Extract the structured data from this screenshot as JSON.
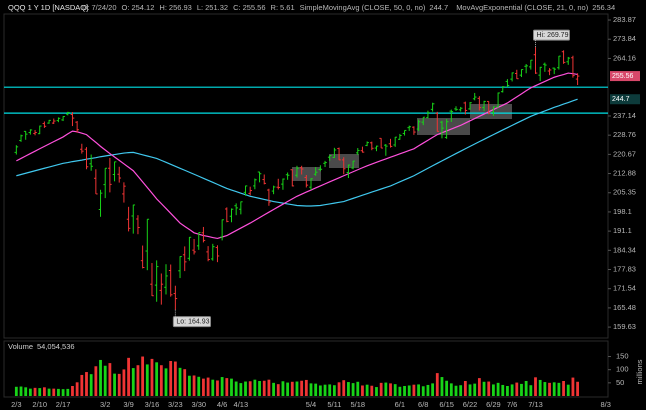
{
  "chart_data": {
    "type": "ohlc",
    "title": "QQQ 1 Y 1D [NASDAQ]",
    "header": [
      {
        "label": "D:",
        "value": "7/24/20"
      },
      {
        "label": "O:",
        "value": 254.12
      },
      {
        "label": "H:",
        "value": 256.93
      },
      {
        "label": "L:",
        "value": 251.32
      },
      {
        "label": "C:",
        "value": 255.56
      },
      {
        "label": "R:",
        "value": 5.61
      }
    ],
    "log_scale": true,
    "grid": false,
    "up_color": "#18d418",
    "down_color": "#f03434",
    "hlines": [
      250.3,
      238.4
    ],
    "hline_color": "#00e0e6",
    "ylim": [
      156.4,
      287.1
    ],
    "yticks": [
      283.87,
      273.84,
      264.16,
      237.14,
      228.76,
      220.67,
      212.88,
      205.35,
      198.1,
      191.1,
      184.34,
      177.83,
      171.54,
      165.48,
      159.63
    ],
    "annotations": {
      "high_label": "Hi:",
      "low_label": "Lo:"
    },
    "categories": [
      "2/3",
      null,
      null,
      null,
      null,
      "2/10",
      null,
      null,
      null,
      null,
      "2/17",
      null,
      null,
      null,
      null,
      null,
      null,
      null,
      null,
      "3/2",
      null,
      null,
      null,
      null,
      "3/9",
      null,
      null,
      null,
      null,
      "3/16",
      null,
      null,
      null,
      null,
      "3/23",
      null,
      null,
      null,
      null,
      "3/30",
      null,
      null,
      null,
      null,
      "4/6",
      null,
      null,
      null,
      "4/13",
      null,
      null,
      null,
      null,
      null,
      null,
      null,
      null,
      null,
      null,
      null,
      null,
      null,
      null,
      "5/4",
      null,
      null,
      null,
      null,
      "5/11",
      null,
      null,
      null,
      null,
      "5/18",
      null,
      null,
      null,
      null,
      null,
      null,
      null,
      null,
      "6/1",
      null,
      null,
      null,
      null,
      "6/8",
      null,
      null,
      null,
      null,
      "6/15",
      null,
      null,
      null,
      null,
      "6/22",
      null,
      null,
      null,
      null,
      "6/29",
      null,
      null,
      null,
      "7/6",
      null,
      null,
      null,
      null,
      "7/13",
      null,
      null,
      null,
      null,
      null,
      null,
      null,
      null,
      null,
      null,
      null,
      null,
      null,
      null,
      "8/3"
    ],
    "bars": [
      [
        221.5,
        224.5,
        220.6,
        223.8
      ],
      [
        226.5,
        229.0,
        225.9,
        228.5
      ],
      [
        230.4,
        230.5,
        226.8,
        229.2
      ],
      [
        229.9,
        231.3,
        229.0,
        231.0
      ],
      [
        229.5,
        231.0,
        228.7,
        229.9
      ],
      [
        229.4,
        232.9,
        229.2,
        232.7
      ],
      [
        233.8,
        234.7,
        231.9,
        232.6
      ],
      [
        234.0,
        235.4,
        233.7,
        235.2
      ],
      [
        234.0,
        236.0,
        233.6,
        234.9
      ],
      [
        235.1,
        236.5,
        234.4,
        236.1
      ],
      [
        235.4,
        237.0,
        234.9,
        236.9
      ],
      [
        238.0,
        239.0,
        237.4,
        238.7
      ],
      [
        237.8,
        238.9,
        232.7,
        236.2
      ],
      [
        234.4,
        234.9,
        229.8,
        231.1
      ],
      [
        222.8,
        225.1,
        221.0,
        222.0
      ],
      [
        222.8,
        223.7,
        214.6,
        215.6
      ],
      [
        216.8,
        220.6,
        214.0,
        215.8
      ],
      [
        211.0,
        214.6,
        204.9,
        204.9
      ],
      [
        199.0,
        206.5,
        196.3,
        205.2
      ],
      [
        208.5,
        215.0,
        203.3,
        215.0
      ],
      [
        215.0,
        219.2,
        205.5,
        208.6
      ],
      [
        212.5,
        217.7,
        209.8,
        217.6
      ],
      [
        212.6,
        215.6,
        209.3,
        211.1
      ],
      [
        204.9,
        209.4,
        201.6,
        207.9
      ],
      [
        195.4,
        200.0,
        191.0,
        192.1
      ],
      [
        196.6,
        200.8,
        190.2,
        200.7
      ],
      [
        195.5,
        196.9,
        190.0,
        192.4
      ],
      [
        180.8,
        186.0,
        178.2,
        178.5
      ],
      [
        184.1,
        195.4,
        177.6,
        195.4
      ],
      [
        173.0,
        180.0,
        169.2,
        169.3
      ],
      [
        172.7,
        180.9,
        167.4,
        178.8
      ],
      [
        171.0,
        176.5,
        166.5,
        173.0
      ],
      [
        172.0,
        179.6,
        169.7,
        175.7
      ],
      [
        177.5,
        179.5,
        169.0,
        169.6
      ],
      [
        170.0,
        172.5,
        164.93,
        168.4
      ],
      [
        177.4,
        182.3,
        175.0,
        182.2
      ],
      [
        182.8,
        185.7,
        177.3,
        180.4
      ],
      [
        181.6,
        189.0,
        180.8,
        188.9
      ],
      [
        184.4,
        188.3,
        182.9,
        183.8
      ],
      [
        185.9,
        190.6,
        184.5,
        190.6
      ],
      [
        190.5,
        192.6,
        187.1,
        187.8
      ],
      [
        183.8,
        185.8,
        180.6,
        181.2
      ],
      [
        181.4,
        186.6,
        180.8,
        185.6
      ],
      [
        185.3,
        186.1,
        180.3,
        182.4
      ],
      [
        189.0,
        195.3,
        187.8,
        195.2
      ],
      [
        199.2,
        199.8,
        194.3,
        194.6
      ],
      [
        196.5,
        199.4,
        194.3,
        199.1
      ],
      [
        200.4,
        201.3,
        196.9,
        199.6
      ],
      [
        199.1,
        202.0,
        197.2,
        201.9
      ],
      [
        205.5,
        208.1,
        204.2,
        208.0
      ],
      [
        205.1,
        207.7,
        204.4,
        206.2
      ],
      [
        208.0,
        210.9,
        206.7,
        210.4
      ],
      [
        213.5,
        213.6,
        209.4,
        212.8
      ],
      [
        210.5,
        212.5,
        208.6,
        209.0
      ],
      [
        206.4,
        206.9,
        200.4,
        201.8
      ],
      [
        206.0,
        208.1,
        204.8,
        207.6
      ],
      [
        207.5,
        210.8,
        206.6,
        207.4
      ],
      [
        208.7,
        210.9,
        206.5,
        210.7
      ],
      [
        212.4,
        213.3,
        210.4,
        212.2
      ],
      [
        214.4,
        214.6,
        207.8,
        208.0
      ],
      [
        212.2,
        216.0,
        211.3,
        215.0
      ],
      [
        215.2,
        216.0,
        212.5,
        214.7
      ],
      [
        211.3,
        212.3,
        207.4,
        208.3
      ],
      [
        207.5,
        211.0,
        206.4,
        210.8
      ],
      [
        212.6,
        215.5,
        212.0,
        213.4
      ],
      [
        214.5,
        216.2,
        213.8,
        214.6
      ],
      [
        217.0,
        218.0,
        215.5,
        217.3
      ],
      [
        219.5,
        220.3,
        218.0,
        220.2
      ],
      [
        219.4,
        223.4,
        219.2,
        222.5
      ],
      [
        223.1,
        223.5,
        218.3,
        218.4
      ],
      [
        218.4,
        219.5,
        212.6,
        214.8
      ],
      [
        213.3,
        216.5,
        211.1,
        216.3
      ],
      [
        215.1,
        218.0,
        214.6,
        217.9
      ],
      [
        221.3,
        223.3,
        220.4,
        222.3
      ],
      [
        222.2,
        223.9,
        221.4,
        221.6
      ],
      [
        224.4,
        226.1,
        224.1,
        225.6
      ],
      [
        225.5,
        226.0,
        222.4,
        223.2
      ],
      [
        223.3,
        224.3,
        222.0,
        224.1
      ],
      [
        227.4,
        227.5,
        223.3,
        223.3
      ],
      [
        224.5,
        225.0,
        220.1,
        224.1
      ],
      [
        225.1,
        227.2,
        223.5,
        224.0
      ],
      [
        224.6,
        228.0,
        223.8,
        227.9
      ],
      [
        227.0,
        229.3,
        226.8,
        228.6
      ],
      [
        229.5,
        230.8,
        228.6,
        230.8
      ],
      [
        232.0,
        232.9,
        230.6,
        232.4
      ],
      [
        232.2,
        232.6,
        228.9,
        230.1
      ],
      [
        231.4,
        235.6,
        230.5,
        234.6
      ],
      [
        234.4,
        236.6,
        233.1,
        236.6
      ],
      [
        236.4,
        239.5,
        236.1,
        238.6
      ],
      [
        240.1,
        243.1,
        239.1,
        242.6
      ],
      [
        238.3,
        239.0,
        230.3,
        230.4
      ],
      [
        234.4,
        235.0,
        227.4,
        231.8
      ],
      [
        227.8,
        235.8,
        227.2,
        234.6
      ],
      [
        239.3,
        240.0,
        234.5,
        239.1
      ],
      [
        240.3,
        241.5,
        239.4,
        240.1
      ],
      [
        239.9,
        241.2,
        239.1,
        240.6
      ],
      [
        243.0,
        243.6,
        237.8,
        239.6
      ],
      [
        240.3,
        243.4,
        239.9,
        243.1
      ],
      [
        244.9,
        247.6,
        244.2,
        245.7
      ],
      [
        245.1,
        246.1,
        239.6,
        240.9
      ],
      [
        240.9,
        244.0,
        239.3,
        243.7
      ],
      [
        243.7,
        243.7,
        237.9,
        238.3
      ],
      [
        238.8,
        241.4,
        237.2,
        241.2
      ],
      [
        241.2,
        247.8,
        240.9,
        247.6
      ],
      [
        248.2,
        250.8,
        247.8,
        250.5
      ],
      [
        253.0,
        254.1,
        250.3,
        251.1
      ],
      [
        254.1,
        257.3,
        253.0,
        257.1
      ],
      [
        256.8,
        258.6,
        254.2,
        254.3
      ],
      [
        256.0,
        258.8,
        255.1,
        258.7
      ],
      [
        260.3,
        261.4,
        256.9,
        260.5
      ],
      [
        260.0,
        263.4,
        258.7,
        263.3
      ],
      [
        266.0,
        269.79,
        256.6,
        257.0
      ],
      [
        256.0,
        260.0,
        253.2,
        259.8
      ],
      [
        261.3,
        262.1,
        257.6,
        260.9
      ],
      [
        258.0,
        259.4,
        256.0,
        258.5
      ],
      [
        259.4,
        259.7,
        256.5,
        258.9
      ],
      [
        259.6,
        265.4,
        258.7,
        265.3
      ],
      [
        267.5,
        268.2,
        261.5,
        262.2
      ],
      [
        262.5,
        264.9,
        261.0,
        264.3
      ],
      [
        264.5,
        265.5,
        254.8,
        255.8
      ],
      [
        254.12,
        256.93,
        251.32,
        255.56
      ],
      null,
      null,
      null,
      null,
      null,
      null
    ],
    "series": [
      {
        "name": "SimpleMovingAvg (CLOSE, 50, 0, no)",
        "color": "#40c8ee",
        "values": [
          212,
          212.5,
          213,
          213.5,
          214,
          214.5,
          215,
          215.5,
          216,
          216.5,
          217,
          217.3,
          217.7,
          218,
          218.3,
          218.7,
          219,
          219.3,
          219.7,
          220,
          220.3,
          220.6,
          220.9,
          221.2,
          221.4,
          221.5,
          221,
          220.5,
          220,
          219.5,
          219,
          218.2,
          217.4,
          216.6,
          215.8,
          215,
          214.2,
          213.4,
          212.6,
          211.8,
          211,
          210.2,
          209.4,
          208.6,
          207.8,
          207,
          206.4,
          205.8,
          205.2,
          204.6,
          204,
          203.6,
          203.2,
          202.8,
          202.4,
          202,
          201.7,
          201.4,
          201.1,
          200.8,
          200.5,
          200.4,
          200.3,
          200.3,
          200.4,
          200.5,
          200.8,
          201.1,
          201.4,
          201.7,
          202,
          202.6,
          203.2,
          203.8,
          204.4,
          205,
          205.6,
          206.2,
          206.8,
          207.4,
          208,
          208.8,
          209.6,
          210.4,
          211.2,
          212,
          213,
          214,
          215,
          216,
          217,
          218,
          219,
          220,
          221,
          222,
          223,
          224,
          225,
          226,
          227,
          228,
          229,
          230,
          231,
          232,
          233,
          234,
          235,
          236,
          237,
          237.8,
          238.6,
          239.4,
          240.2,
          241,
          241.7,
          242.5,
          243.2,
          244,
          244.7,
          null,
          null,
          null,
          null,
          null,
          null
        ]
      },
      {
        "name": "MovAvgExponential (CLOSE, 21, 0, no)",
        "color": "#ff50dc",
        "values": [
          218,
          219,
          220,
          221,
          222,
          223,
          224,
          225,
          226,
          227,
          228,
          229.3,
          230.5,
          230.2,
          229.6,
          229,
          227.3,
          225.7,
          224,
          222.5,
          221,
          219.6,
          218.2,
          216.8,
          215.4,
          214,
          211.8,
          209.6,
          207.4,
          205.2,
          203,
          201.2,
          199.4,
          197.6,
          195.8,
          194,
          192.8,
          191.7,
          190.5,
          190,
          189.5,
          189.2,
          188.8,
          188.5,
          189,
          189.5,
          190.4,
          191.3,
          192.2,
          193.1,
          194,
          195,
          196,
          197,
          198,
          199,
          200,
          201,
          202,
          203,
          204,
          204.8,
          205.6,
          206.4,
          207.2,
          208,
          208.8,
          209.6,
          210.4,
          211.2,
          212,
          212.8,
          213.6,
          214.4,
          215.2,
          216,
          216.7,
          217.4,
          218.1,
          218.8,
          219.5,
          220.2,
          220.9,
          221.6,
          222.3,
          223,
          224.2,
          225.4,
          226.6,
          227.8,
          229,
          229.8,
          230.6,
          231.4,
          232.2,
          233,
          234,
          235,
          236,
          237,
          238,
          239,
          240,
          241,
          242,
          243,
          244.4,
          245.8,
          247.2,
          248.6,
          250,
          251,
          252,
          253,
          254,
          255,
          255.7,
          256.3,
          257,
          256.7,
          256.34,
          null,
          null,
          null,
          null,
          null,
          null
        ]
      }
    ],
    "volume": {
      "title": "Volume",
      "current": "54,054,536",
      "unit_label": "millions",
      "ylim": [
        0,
        190
      ],
      "yticks": [
        50,
        100,
        150
      ],
      "values": [
        35,
        36,
        33,
        28,
        31,
        30,
        33,
        28,
        28,
        27,
        26,
        27,
        38,
        52,
        80,
        91,
        83,
        113,
        137,
        115,
        125,
        85,
        84,
        101,
        145,
        106,
        117,
        150,
        120,
        141,
        128,
        117,
        105,
        133,
        131,
        107,
        102,
        77,
        78,
        73,
        66,
        70,
        62,
        59,
        72,
        68,
        66,
        55,
        49,
        55,
        56,
        62,
        57,
        58,
        62,
        50,
        45,
        56,
        51,
        54,
        55,
        58,
        61,
        48,
        47,
        40,
        43,
        44,
        41,
        52,
        60,
        53,
        49,
        54,
        40,
        43,
        39,
        34,
        50,
        51,
        48,
        45,
        35,
        38,
        40,
        43,
        44,
        37,
        42,
        48,
        87,
        72,
        58,
        48,
        39,
        41,
        57,
        44,
        47,
        68,
        54,
        55,
        44,
        50,
        42,
        38,
        44,
        51,
        46,
        57,
        41,
        71,
        61,
        53,
        50,
        52,
        50,
        57,
        43,
        70,
        54.05,
        null,
        null,
        null,
        null,
        null,
        null
      ]
    }
  }
}
